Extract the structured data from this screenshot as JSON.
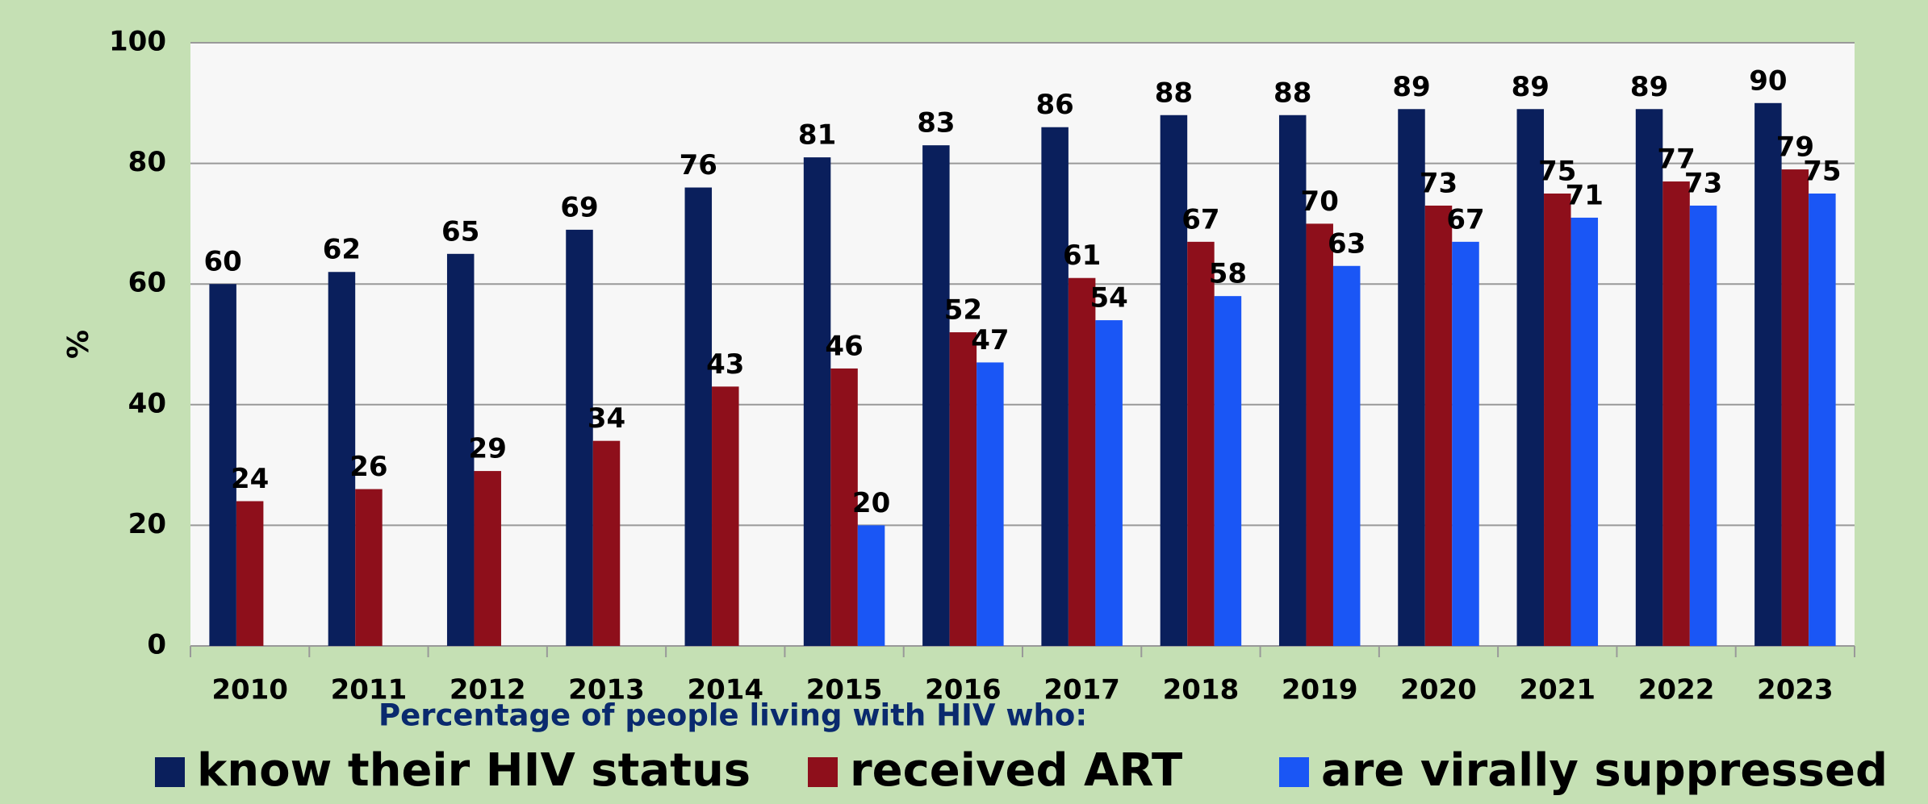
{
  "chart_data": {
    "type": "bar",
    "y_label": "%",
    "legend_title": "Percentage of people living with HIV who:",
    "categories": [
      "2010",
      "2011",
      "2012",
      "2013",
      "2014",
      "2015",
      "2016",
      "2017",
      "2018",
      "2019",
      "2020",
      "2021",
      "2022",
      "2023"
    ],
    "series": [
      {
        "name": "know their HIV status",
        "color": "#0a1f5c",
        "values": [
          60,
          62,
          65,
          69,
          76,
          81,
          83,
          86,
          88,
          88,
          89,
          89,
          89,
          90
        ]
      },
      {
        "name": "received ART",
        "color": "#8e0f1b",
        "values": [
          24,
          26,
          29,
          34,
          43,
          46,
          52,
          61,
          67,
          70,
          73,
          75,
          77,
          79
        ]
      },
      {
        "name": "are virally suppressed",
        "color": "#1a56f5",
        "values": [
          null,
          null,
          null,
          null,
          null,
          20,
          47,
          54,
          58,
          63,
          67,
          71,
          73,
          75
        ]
      }
    ],
    "ylim": [
      0,
      100
    ],
    "yticks": [
      0,
      20,
      40,
      60,
      80,
      100
    ],
    "grid": true
  }
}
